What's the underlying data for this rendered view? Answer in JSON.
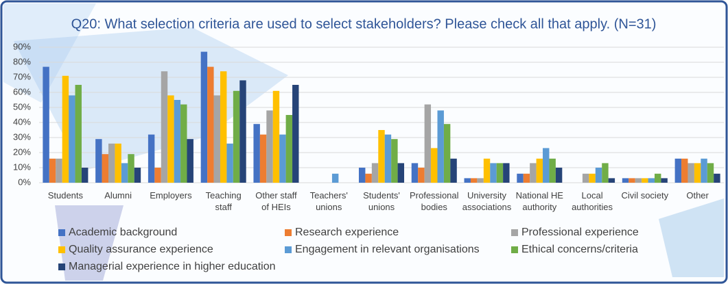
{
  "chart_data": {
    "type": "bar",
    "title": "Q20: What selection criteria are used to select stakeholders? Please check all that apply. (N=31)",
    "categories": [
      "Students",
      "Alumni",
      "Employers",
      "Teaching\nstaff",
      "Other staff\nof HEIs",
      "Teachers'\nunions",
      "Students'\nunions",
      "Professional\nbodies",
      "University\nassociations",
      "National HE\nauthority",
      "Local\nauthorities",
      "Civil society",
      "Other"
    ],
    "series": [
      {
        "name": "Academic background",
        "color": "#4472c4",
        "values": [
          77,
          29,
          32,
          87,
          39,
          0,
          10,
          13,
          3,
          6,
          0,
          3,
          16
        ]
      },
      {
        "name": "Research experience",
        "color": "#ed7d31",
        "values": [
          16,
          19,
          10,
          77,
          32,
          0,
          6,
          10,
          3,
          6,
          0,
          3,
          16
        ]
      },
      {
        "name": "Professional experience",
        "color": "#a5a5a5",
        "values": [
          16,
          26,
          74,
          58,
          48,
          0,
          13,
          52,
          3,
          13,
          6,
          3,
          13
        ]
      },
      {
        "name": "Quality assurance experience",
        "color": "#ffc000",
        "values": [
          71,
          26,
          58,
          74,
          61,
          0,
          35,
          23,
          16,
          16,
          6,
          3,
          13
        ]
      },
      {
        "name": "Engagement in relevant organisations",
        "color": "#5b9bd5",
        "values": [
          58,
          13,
          55,
          26,
          32,
          6,
          32,
          48,
          13,
          23,
          10,
          3,
          16
        ]
      },
      {
        "name": "Ethical concerns/criteria",
        "color": "#70ad47",
        "values": [
          65,
          19,
          52,
          61,
          45,
          0,
          29,
          39,
          13,
          16,
          13,
          6,
          13
        ]
      },
      {
        "name": "Managerial experience in higher education",
        "color": "#264478",
        "values": [
          10,
          10,
          29,
          68,
          65,
          0,
          13,
          16,
          13,
          10,
          3,
          3,
          6
        ]
      }
    ],
    "ylim": [
      0,
      90
    ],
    "yticks": [
      {
        "value": 0,
        "label": "0%"
      },
      {
        "value": 10,
        "label": "10%"
      },
      {
        "value": 20,
        "label": "20%"
      },
      {
        "value": 30,
        "label": "30%"
      },
      {
        "value": 40,
        "label": "40%"
      },
      {
        "value": 50,
        "label": "50%"
      },
      {
        "value": 60,
        "label": "60%"
      },
      {
        "value": 70,
        "label": "70%"
      },
      {
        "value": 80,
        "label": "80%"
      },
      {
        "value": 90,
        "label": "90%"
      }
    ],
    "grid": true
  }
}
